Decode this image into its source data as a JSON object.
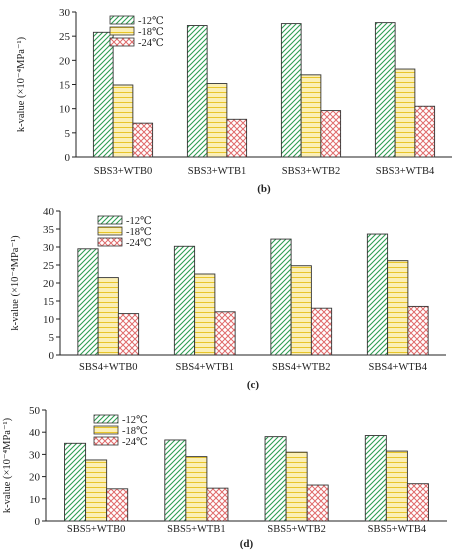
{
  "colors": {
    "s12": "#2e9e52",
    "s18": "#e6c11a",
    "s24": "#e06a6a",
    "fill12": "#ffffff",
    "fill18": "#fbefb6",
    "fill24": "#ffffff",
    "axis": "#222222"
  },
  "chart_data": [
    {
      "type": "bar",
      "panel_label": "(b)",
      "ylabel": "k-value (×10⁻⁴MPa⁻¹)",
      "ylim": [
        0,
        30
      ],
      "yticks": [
        0,
        5,
        10,
        15,
        20,
        25,
        30
      ],
      "categories": [
        "SBS3+WTB0",
        "SBS3+WTB1",
        "SBS3+WTB2",
        "SBS3+WTB4"
      ],
      "series": [
        {
          "name": "-12℃",
          "values": [
            25.8,
            27.2,
            27.6,
            27.8
          ]
        },
        {
          "name": "-18℃",
          "values": [
            14.9,
            15.2,
            17.0,
            18.2
          ]
        },
        {
          "name": "-24℃",
          "values": [
            7.0,
            7.8,
            9.6,
            10.5
          ]
        }
      ],
      "legend_position": "top-left",
      "grid": false
    },
    {
      "type": "bar",
      "panel_label": "(c)",
      "ylabel": "k-value (×10⁻⁴MPa⁻¹)",
      "ylim": [
        0,
        40
      ],
      "yticks": [
        0,
        5,
        10,
        15,
        20,
        25,
        30,
        35,
        40
      ],
      "categories": [
        "SBS4+WTB0",
        "SBS4+WTB1",
        "SBS4+WTB2",
        "SBS4+WTB4"
      ],
      "series": [
        {
          "name": "-12℃",
          "values": [
            29.5,
            30.2,
            32.2,
            33.6
          ]
        },
        {
          "name": "-18℃",
          "values": [
            21.5,
            22.5,
            24.8,
            26.2
          ]
        },
        {
          "name": "-24℃",
          "values": [
            11.5,
            12.0,
            13.0,
            13.5
          ]
        }
      ],
      "legend_position": "top-left",
      "grid": false
    },
    {
      "type": "bar",
      "panel_label": "(d)",
      "ylabel": "k-value (×10⁻⁴MPa⁻¹)",
      "ylim": [
        0,
        50
      ],
      "yticks": [
        0,
        10,
        20,
        30,
        40,
        50
      ],
      "categories": [
        "SBS5+WTB0",
        "SBS5+WTB1",
        "SBS5+WTB2",
        "SBS5+WTB4"
      ],
      "series": [
        {
          "name": "-12℃",
          "values": [
            35.0,
            36.5,
            38.0,
            38.5
          ]
        },
        {
          "name": "-18℃",
          "values": [
            27.5,
            29.0,
            31.0,
            31.5
          ]
        },
        {
          "name": "-24℃",
          "values": [
            14.5,
            14.8,
            16.2,
            16.8
          ]
        }
      ],
      "legend_position": "top-left",
      "grid": false
    }
  ]
}
